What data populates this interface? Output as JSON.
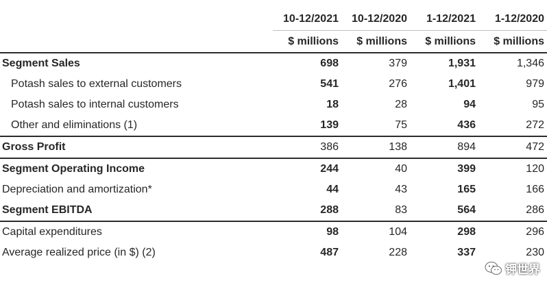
{
  "columns": {
    "periods": [
      "10-12/2021",
      "10-12/2020",
      "1-12/2021",
      "1-12/2020"
    ],
    "units": [
      "$ millions",
      "$ millions",
      "$ millions",
      "$ millions"
    ]
  },
  "rows": [
    {
      "label": "Segment Sales",
      "values": [
        "698",
        "379",
        "1,931",
        "1,346"
      ]
    },
    {
      "label": "Potash sales to external customers",
      "values": [
        "541",
        "276",
        "1,401",
        "979"
      ]
    },
    {
      "label": "Potash sales to internal customers",
      "values": [
        "18",
        "28",
        "94",
        "95"
      ]
    },
    {
      "label": "Other and eliminations (1)",
      "values": [
        "139",
        "75",
        "436",
        "272"
      ]
    },
    {
      "label": "Gross Profit",
      "values": [
        "386",
        "138",
        "894",
        "472"
      ]
    },
    {
      "label": "Segment Operating Income",
      "values": [
        "244",
        "40",
        "399",
        "120"
      ]
    },
    {
      "label": "Depreciation and amortization*",
      "values": [
        "44",
        "43",
        "165",
        "166"
      ]
    },
    {
      "label": "Segment EBITDA",
      "values": [
        "288",
        "83",
        "564",
        "286"
      ]
    },
    {
      "label": "Capital expenditures",
      "values": [
        "98",
        "104",
        "298",
        "296"
      ]
    },
    {
      "label": "Average realized price (in $) (2)",
      "values": [
        "487",
        "228",
        "337",
        "230"
      ]
    }
  ],
  "watermark": {
    "text": "钾世界",
    "icon": "wechat-logo-icon"
  }
}
